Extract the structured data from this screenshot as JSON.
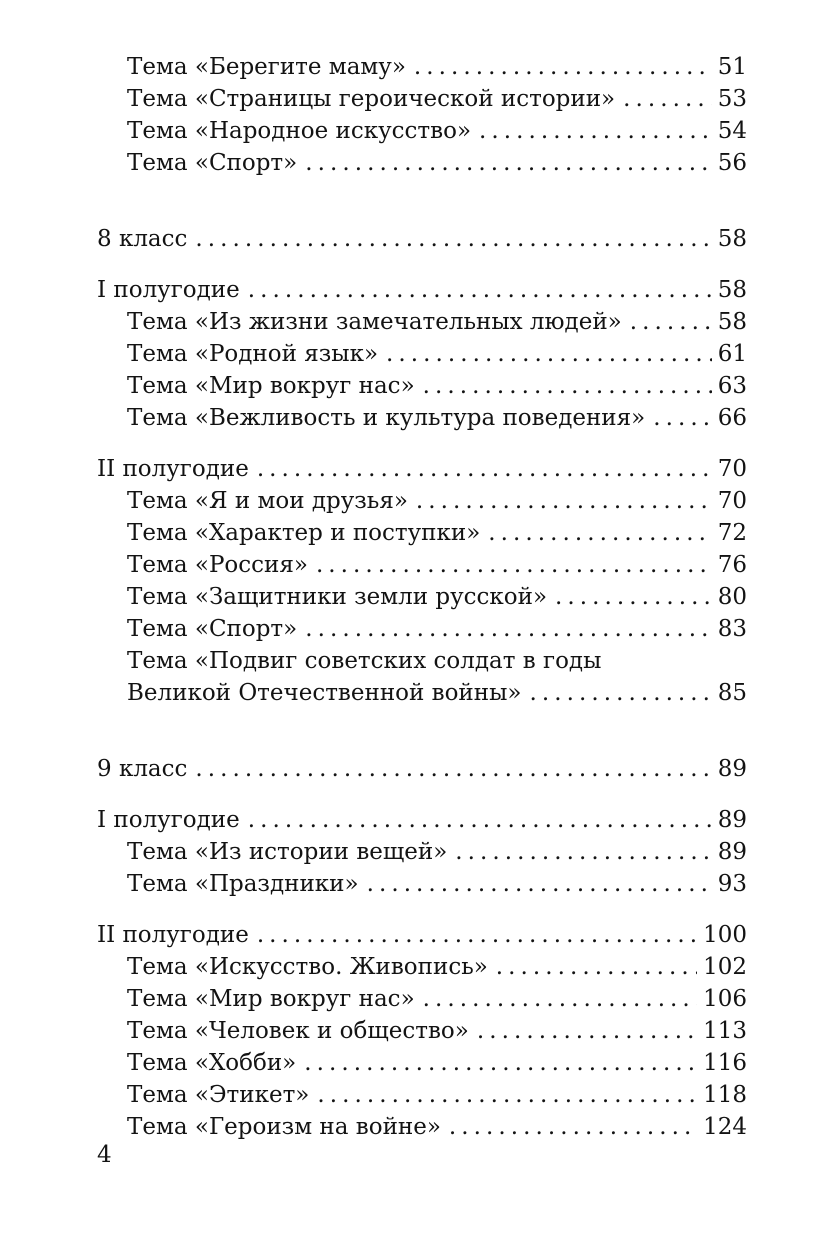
{
  "page_number": "4",
  "toc": {
    "blocks": [
      {
        "kind": "topics",
        "rows": [
          {
            "level": 1,
            "title": "Тема «Берегите маму»",
            "page": "51"
          },
          {
            "level": 1,
            "title": "Тема «Страницы героической истории»",
            "page": "53"
          },
          {
            "level": 1,
            "title": "Тема «Народное искусство»",
            "page": "54"
          },
          {
            "level": 1,
            "title": "Тема «Спорт»",
            "page": "56"
          }
        ]
      },
      {
        "kind": "class",
        "rows": [
          {
            "level": 0,
            "title": "8 класс",
            "page": "58"
          }
        ]
      },
      {
        "kind": "semester",
        "rows": [
          {
            "level": 0,
            "title": "I полугодие",
            "page": "58"
          },
          {
            "level": 1,
            "title": "Тема «Из жизни замечательных людей»",
            "page": "58"
          },
          {
            "level": 1,
            "title": "Тема «Родной язык»",
            "page": "61"
          },
          {
            "level": 1,
            "title": "Тема «Мир вокруг нас»",
            "page": "63"
          },
          {
            "level": 1,
            "title": "Тема «Вежливость и культура поведения»",
            "page": "66"
          }
        ]
      },
      {
        "kind": "semester",
        "rows": [
          {
            "level": 0,
            "title": "II полугодие",
            "page": "70"
          },
          {
            "level": 1,
            "title": "Тема «Я и мои друзья»",
            "page": "70"
          },
          {
            "level": 1,
            "title": "Тема «Характер и поступки»",
            "page": "72"
          },
          {
            "level": 1,
            "title": "Тема «Россия»",
            "page": "76"
          },
          {
            "level": 1,
            "title": "Тема «Защитники земли русской»",
            "page": "80"
          },
          {
            "level": 1,
            "title": "Тема «Спорт»",
            "page": "83"
          },
          {
            "level": 1,
            "title": "Тема «Подвиг советских солдат в годы",
            "page": ""
          },
          {
            "level": 1,
            "title": "Великой Отечественной войны»",
            "page": "85"
          }
        ]
      },
      {
        "kind": "class",
        "rows": [
          {
            "level": 0,
            "title": "9 класс",
            "page": "89"
          }
        ]
      },
      {
        "kind": "semester",
        "rows": [
          {
            "level": 0,
            "title": "I полугодие",
            "page": "89"
          },
          {
            "level": 1,
            "title": "Тема «Из истории вещей»",
            "page": "89"
          },
          {
            "level": 1,
            "title": "Тема «Праздники»",
            "page": "93"
          }
        ]
      },
      {
        "kind": "semester",
        "rows": [
          {
            "level": 0,
            "title": "II полугодие",
            "page": "100"
          },
          {
            "level": 1,
            "title": "Тема «Искусство. Живопись»",
            "page": "102"
          },
          {
            "level": 1,
            "title": "Тема «Мир вокруг нас»",
            "page": "106"
          },
          {
            "level": 1,
            "title": "Тема «Человек и общество»",
            "page": "113"
          },
          {
            "level": 1,
            "title": "Тема «Хобби»",
            "page": "116"
          },
          {
            "level": 1,
            "title": "Тема «Этикет»",
            "page": "118"
          },
          {
            "level": 1,
            "title": "Тема «Героизм на войне»",
            "page": "124"
          }
        ]
      }
    ]
  }
}
